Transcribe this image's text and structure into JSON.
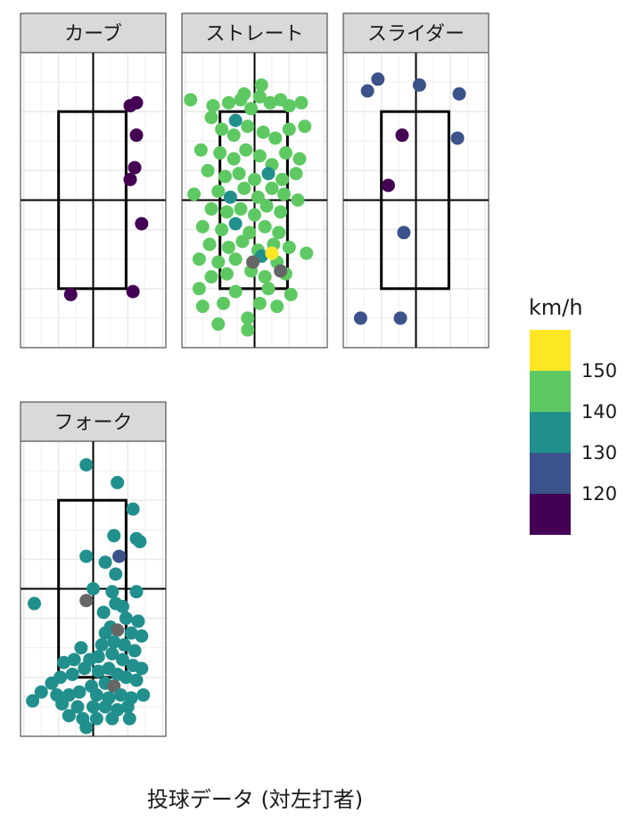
{
  "chart_data": {
    "type": "scatter",
    "title": "",
    "xlabel": "投球データ (対左打者)",
    "ylabel": "",
    "xlim": [
      -2.1,
      2.1
    ],
    "ylim": [
      0,
      5.0
    ],
    "grid": true,
    "legend_position": "right",
    "strike_zone": {
      "x": [
        -1.0,
        0.95
      ],
      "y": [
        1.0,
        4.0
      ]
    },
    "color_scale": {
      "title": "km/h",
      "type": "binned",
      "breaks": [
        150,
        140,
        130,
        120
      ],
      "bins": [
        {
          "from": 145,
          "to": 155,
          "color": "#fde725"
        },
        {
          "from": 135,
          "to": 145,
          "color": "#5ec962"
        },
        {
          "from": 125,
          "to": 135,
          "color": "#21908d"
        },
        {
          "from": 115,
          "to": 125,
          "color": "#3b528b"
        },
        {
          "from": 105,
          "to": 115,
          "color": "#440154"
        }
      ],
      "na_color": "#666666"
    },
    "facets": [
      {
        "label": "カーブ",
        "points": [
          {
            "x": 1.25,
            "y": 4.15,
            "speed": 110
          },
          {
            "x": 1.07,
            "y": 4.1,
            "speed": 110
          },
          {
            "x": 1.25,
            "y": 3.6,
            "speed": 110
          },
          {
            "x": 1.2,
            "y": 3.05,
            "speed": 110
          },
          {
            "x": 1.07,
            "y": 2.85,
            "speed": 110
          },
          {
            "x": 1.4,
            "y": 2.1,
            "speed": 110
          },
          {
            "x": 1.15,
            "y": 0.95,
            "speed": 110
          },
          {
            "x": -0.65,
            "y": 0.9,
            "speed": 110
          }
        ]
      },
      {
        "label": "ストレート",
        "points": [
          {
            "x": -1.85,
            "y": 4.2,
            "speed": 140
          },
          {
            "x": -1.2,
            "y": 4.1,
            "speed": 140
          },
          {
            "x": -0.75,
            "y": 4.15,
            "speed": 140
          },
          {
            "x": -0.4,
            "y": 4.2,
            "speed": 140
          },
          {
            "x": -0.1,
            "y": 4.05,
            "speed": 140
          },
          {
            "x": 0.15,
            "y": 4.25,
            "speed": 140
          },
          {
            "x": 0.45,
            "y": 4.15,
            "speed": 140
          },
          {
            "x": 0.75,
            "y": 4.2,
            "speed": 140
          },
          {
            "x": 1.0,
            "y": 4.1,
            "speed": 140
          },
          {
            "x": 1.35,
            "y": 4.15,
            "speed": 140
          },
          {
            "x": 0.2,
            "y": 4.45,
            "speed": 140
          },
          {
            "x": -0.3,
            "y": 4.3,
            "speed": 140
          },
          {
            "x": -0.55,
            "y": 3.85,
            "speed": 130
          },
          {
            "x": -1.25,
            "y": 3.9,
            "speed": 140
          },
          {
            "x": -0.95,
            "y": 3.7,
            "speed": 140
          },
          {
            "x": -0.6,
            "y": 3.6,
            "speed": 140
          },
          {
            "x": -0.2,
            "y": 3.75,
            "speed": 140
          },
          {
            "x": 0.25,
            "y": 3.65,
            "speed": 140
          },
          {
            "x": 0.6,
            "y": 3.55,
            "speed": 140
          },
          {
            "x": 1.0,
            "y": 3.7,
            "speed": 140
          },
          {
            "x": 1.45,
            "y": 3.75,
            "speed": 140
          },
          {
            "x": -1.55,
            "y": 3.35,
            "speed": 140
          },
          {
            "x": -1.0,
            "y": 3.3,
            "speed": 140
          },
          {
            "x": -0.6,
            "y": 3.2,
            "speed": 140
          },
          {
            "x": -0.25,
            "y": 3.35,
            "speed": 140
          },
          {
            "x": 0.15,
            "y": 3.25,
            "speed": 140
          },
          {
            "x": 0.5,
            "y": 3.1,
            "speed": 140
          },
          {
            "x": 0.9,
            "y": 3.3,
            "speed": 140
          },
          {
            "x": 1.3,
            "y": 3.2,
            "speed": 140
          },
          {
            "x": -1.35,
            "y": 3.0,
            "speed": 140
          },
          {
            "x": -0.85,
            "y": 2.9,
            "speed": 140
          },
          {
            "x": -0.45,
            "y": 2.95,
            "speed": 140
          },
          {
            "x": 0.0,
            "y": 2.85,
            "speed": 140
          },
          {
            "x": 0.4,
            "y": 2.95,
            "speed": 130
          },
          {
            "x": 0.8,
            "y": 2.85,
            "speed": 140
          },
          {
            "x": 1.2,
            "y": 2.95,
            "speed": 140
          },
          {
            "x": -1.75,
            "y": 2.6,
            "speed": 140
          },
          {
            "x": -1.05,
            "y": 2.65,
            "speed": 140
          },
          {
            "x": -0.7,
            "y": 2.55,
            "speed": 130
          },
          {
            "x": -0.3,
            "y": 2.7,
            "speed": 140
          },
          {
            "x": 0.1,
            "y": 2.55,
            "speed": 140
          },
          {
            "x": 0.5,
            "y": 2.7,
            "speed": 140
          },
          {
            "x": 0.85,
            "y": 2.6,
            "speed": 140
          },
          {
            "x": 1.25,
            "y": 2.5,
            "speed": 140
          },
          {
            "x": -1.25,
            "y": 2.35,
            "speed": 140
          },
          {
            "x": -0.8,
            "y": 2.3,
            "speed": 140
          },
          {
            "x": -0.4,
            "y": 2.35,
            "speed": 140
          },
          {
            "x": 0.0,
            "y": 2.25,
            "speed": 140
          },
          {
            "x": 0.35,
            "y": 2.4,
            "speed": 140
          },
          {
            "x": 0.75,
            "y": 2.3,
            "speed": 140
          },
          {
            "x": -1.5,
            "y": 2.05,
            "speed": 140
          },
          {
            "x": -0.95,
            "y": 2.0,
            "speed": 140
          },
          {
            "x": -0.55,
            "y": 2.1,
            "speed": 130
          },
          {
            "x": -0.15,
            "y": 1.95,
            "speed": 140
          },
          {
            "x": 0.3,
            "y": 2.05,
            "speed": 140
          },
          {
            "x": 0.7,
            "y": 1.95,
            "speed": 140
          },
          {
            "x": -1.3,
            "y": 1.75,
            "speed": 140
          },
          {
            "x": -0.75,
            "y": 1.7,
            "speed": 140
          },
          {
            "x": -0.35,
            "y": 1.8,
            "speed": 140
          },
          {
            "x": 0.1,
            "y": 1.65,
            "speed": 140
          },
          {
            "x": 0.55,
            "y": 1.75,
            "speed": 140
          },
          {
            "x": 1.0,
            "y": 1.7,
            "speed": 140
          },
          {
            "x": 1.5,
            "y": 1.6,
            "speed": 140
          },
          {
            "x": -1.6,
            "y": 1.5,
            "speed": 140
          },
          {
            "x": -1.05,
            "y": 1.45,
            "speed": 140
          },
          {
            "x": -0.55,
            "y": 1.5,
            "speed": 140
          },
          {
            "x": 0.2,
            "y": 1.55,
            "speed": 130
          },
          {
            "x": 0.65,
            "y": 1.45,
            "speed": 140
          },
          {
            "x": 0.5,
            "y": 1.6,
            "speed": 150
          },
          {
            "x": -1.25,
            "y": 1.2,
            "speed": 140
          },
          {
            "x": -0.8,
            "y": 1.25,
            "speed": 140
          },
          {
            "x": -0.1,
            "y": 1.3,
            "speed": 140
          },
          {
            "x": 0.3,
            "y": 1.2,
            "speed": 140
          },
          {
            "x": 0.9,
            "y": 1.25,
            "speed": 140
          },
          {
            "x": -0.05,
            "y": 1.45,
            "speed": 0
          },
          {
            "x": 0.75,
            "y": 1.3,
            "speed": 0
          },
          {
            "x": -1.6,
            "y": 1.0,
            "speed": 140
          },
          {
            "x": -0.55,
            "y": 0.95,
            "speed": 140
          },
          {
            "x": 0.4,
            "y": 1.0,
            "speed": 140
          },
          {
            "x": 1.05,
            "y": 0.9,
            "speed": 140
          },
          {
            "x": -1.5,
            "y": 0.7,
            "speed": 140
          },
          {
            "x": -0.9,
            "y": 0.75,
            "speed": 140
          },
          {
            "x": 0.15,
            "y": 0.75,
            "speed": 140
          },
          {
            "x": 0.65,
            "y": 0.7,
            "speed": 140
          },
          {
            "x": -1.05,
            "y": 0.4,
            "speed": 140
          },
          {
            "x": -0.2,
            "y": 0.5,
            "speed": 140
          },
          {
            "x": -0.2,
            "y": 0.3,
            "speed": 140
          }
        ]
      },
      {
        "label": "スライダー",
        "points": [
          {
            "x": -1.1,
            "y": 4.55,
            "speed": 120
          },
          {
            "x": -1.4,
            "y": 4.35,
            "speed": 120
          },
          {
            "x": 0.1,
            "y": 4.45,
            "speed": 120
          },
          {
            "x": 1.25,
            "y": 4.3,
            "speed": 120
          },
          {
            "x": 1.2,
            "y": 3.55,
            "speed": 120
          },
          {
            "x": -0.4,
            "y": 3.6,
            "speed": 110
          },
          {
            "x": -0.8,
            "y": 2.75,
            "speed": 110
          },
          {
            "x": -0.35,
            "y": 1.95,
            "speed": 120
          },
          {
            "x": -1.6,
            "y": 0.5,
            "speed": 120
          },
          {
            "x": -0.45,
            "y": 0.5,
            "speed": 120
          }
        ]
      },
      {
        "label": "フォーク",
        "points": [
          {
            "x": -0.2,
            "y": 4.6,
            "speed": 130
          },
          {
            "x": 0.7,
            "y": 4.3,
            "speed": 130
          },
          {
            "x": 1.15,
            "y": 3.85,
            "speed": 130
          },
          {
            "x": 0.6,
            "y": 3.4,
            "speed": 130
          },
          {
            "x": 1.25,
            "y": 3.35,
            "speed": 130
          },
          {
            "x": 1.35,
            "y": 3.3,
            "speed": 130
          },
          {
            "x": -0.2,
            "y": 3.05,
            "speed": 130
          },
          {
            "x": 0.75,
            "y": 3.05,
            "speed": 120
          },
          {
            "x": 0.35,
            "y": 2.95,
            "speed": 130
          },
          {
            "x": 0.65,
            "y": 2.75,
            "speed": 130
          },
          {
            "x": 0.0,
            "y": 2.5,
            "speed": 130
          },
          {
            "x": 0.55,
            "y": 2.45,
            "speed": 130
          },
          {
            "x": 1.25,
            "y": 2.45,
            "speed": 130
          },
          {
            "x": -0.2,
            "y": 2.3,
            "speed": 0
          },
          {
            "x": 0.65,
            "y": 2.25,
            "speed": 130
          },
          {
            "x": 0.85,
            "y": 2.2,
            "speed": 130
          },
          {
            "x": -1.7,
            "y": 2.25,
            "speed": 130
          },
          {
            "x": 0.3,
            "y": 2.1,
            "speed": 130
          },
          {
            "x": 0.95,
            "y": 2.0,
            "speed": 130
          },
          {
            "x": 1.3,
            "y": 1.95,
            "speed": 130
          },
          {
            "x": 0.5,
            "y": 1.85,
            "speed": 130
          },
          {
            "x": 0.7,
            "y": 1.8,
            "speed": 0
          },
          {
            "x": 0.35,
            "y": 1.75,
            "speed": 130
          },
          {
            "x": 1.1,
            "y": 1.75,
            "speed": 130
          },
          {
            "x": 1.4,
            "y": 1.7,
            "speed": 130
          },
          {
            "x": 0.6,
            "y": 1.6,
            "speed": 130
          },
          {
            "x": 0.9,
            "y": 1.55,
            "speed": 130
          },
          {
            "x": 0.25,
            "y": 1.55,
            "speed": 130
          },
          {
            "x": -0.35,
            "y": 1.5,
            "speed": 130
          },
          {
            "x": 1.2,
            "y": 1.45,
            "speed": 130
          },
          {
            "x": 0.55,
            "y": 1.4,
            "speed": 130
          },
          {
            "x": 0.15,
            "y": 1.35,
            "speed": 130
          },
          {
            "x": -0.1,
            "y": 1.3,
            "speed": 130
          },
          {
            "x": -0.55,
            "y": 1.3,
            "speed": 130
          },
          {
            "x": -0.85,
            "y": 1.25,
            "speed": 130
          },
          {
            "x": 0.85,
            "y": 1.3,
            "speed": 130
          },
          {
            "x": 1.15,
            "y": 1.2,
            "speed": 130
          },
          {
            "x": 1.4,
            "y": 1.15,
            "speed": 130
          },
          {
            "x": 0.45,
            "y": 1.15,
            "speed": 130
          },
          {
            "x": 0.15,
            "y": 1.1,
            "speed": 130
          },
          {
            "x": -0.25,
            "y": 1.15,
            "speed": 130
          },
          {
            "x": -0.6,
            "y": 1.05,
            "speed": 130
          },
          {
            "x": -0.95,
            "y": 1.0,
            "speed": 130
          },
          {
            "x": 0.7,
            "y": 1.05,
            "speed": 130
          },
          {
            "x": 0.95,
            "y": 1.0,
            "speed": 130
          },
          {
            "x": 1.25,
            "y": 0.95,
            "speed": 130
          },
          {
            "x": 0.35,
            "y": 0.9,
            "speed": 130
          },
          {
            "x": 0.6,
            "y": 0.85,
            "speed": 0
          },
          {
            "x": -0.05,
            "y": 0.85,
            "speed": 130
          },
          {
            "x": -1.2,
            "y": 0.9,
            "speed": 130
          },
          {
            "x": -1.5,
            "y": 0.75,
            "speed": 130
          },
          {
            "x": -1.05,
            "y": 0.7,
            "speed": 130
          },
          {
            "x": -0.7,
            "y": 0.7,
            "speed": 130
          },
          {
            "x": -0.4,
            "y": 0.75,
            "speed": 130
          },
          {
            "x": 0.1,
            "y": 0.7,
            "speed": 130
          },
          {
            "x": 0.45,
            "y": 0.65,
            "speed": 130
          },
          {
            "x": 0.8,
            "y": 0.7,
            "speed": 130
          },
          {
            "x": 1.1,
            "y": 0.65,
            "speed": 130
          },
          {
            "x": 1.45,
            "y": 0.7,
            "speed": 130
          },
          {
            "x": -1.75,
            "y": 0.6,
            "speed": 130
          },
          {
            "x": -0.9,
            "y": 0.55,
            "speed": 130
          },
          {
            "x": -0.45,
            "y": 0.5,
            "speed": 130
          },
          {
            "x": 0.0,
            "y": 0.5,
            "speed": 130
          },
          {
            "x": 0.35,
            "y": 0.5,
            "speed": 130
          },
          {
            "x": 0.7,
            "y": 0.45,
            "speed": 130
          },
          {
            "x": 1.0,
            "y": 0.5,
            "speed": 130
          },
          {
            "x": -0.7,
            "y": 0.35,
            "speed": 130
          },
          {
            "x": -0.3,
            "y": 0.3,
            "speed": 130
          },
          {
            "x": 0.1,
            "y": 0.3,
            "speed": 130
          },
          {
            "x": 0.55,
            "y": 0.3,
            "speed": 130
          },
          {
            "x": 1.05,
            "y": 0.3,
            "speed": 130
          },
          {
            "x": -0.2,
            "y": 0.15,
            "speed": 130
          }
        ]
      }
    ]
  }
}
